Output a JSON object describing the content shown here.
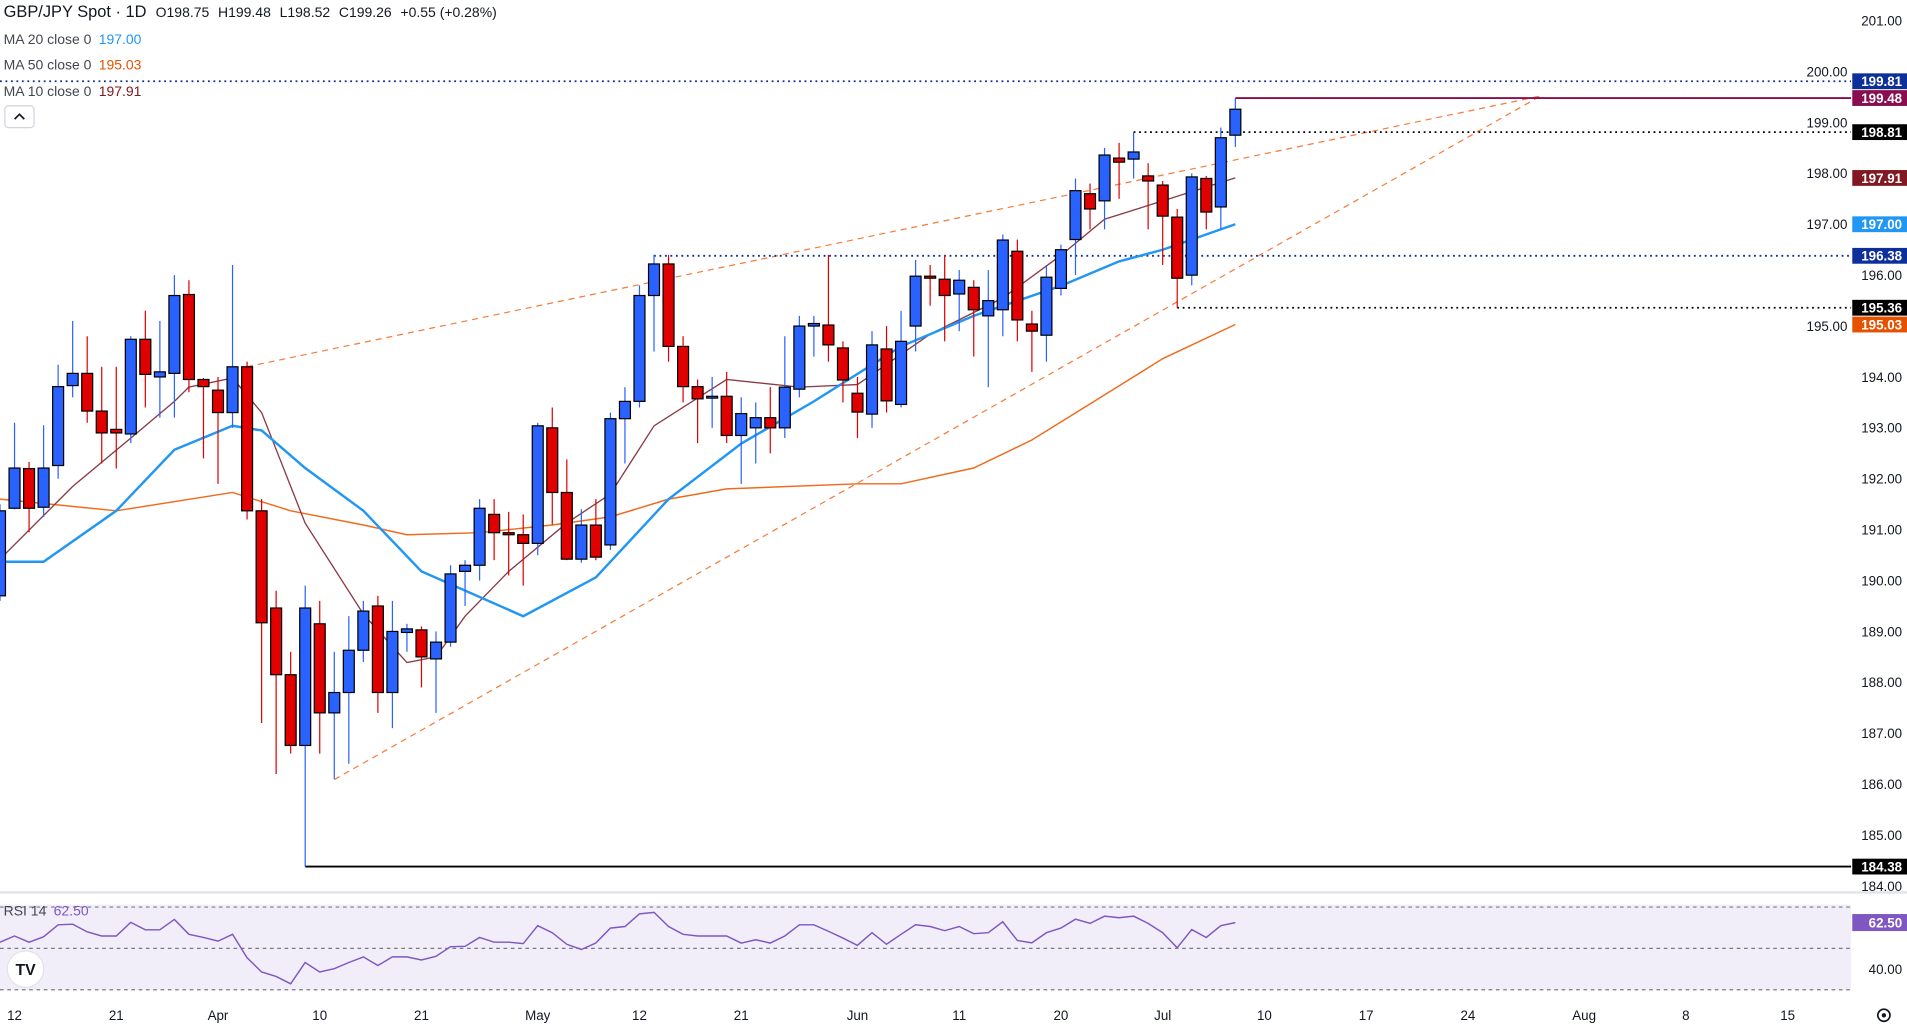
{
  "header": {
    "symbol": "GBP/JPY Spot · 1D",
    "open": "O198.75",
    "high": "H199.48",
    "low": "L198.52",
    "close": "C199.26",
    "change": "+0.55 (+0.28%)"
  },
  "legend": [
    {
      "label": "MA 20 close 0",
      "value": "197.00",
      "color": "#2196f3"
    },
    {
      "label": "MA 50 close 0",
      "value": "195.03",
      "color": "#e65100"
    },
    {
      "label": "MA 10 close 0",
      "value": "197.91",
      "color": "#801922"
    }
  ],
  "collapse_icon": "chevron-up-icon",
  "rsi": {
    "label": "RSI 14",
    "value": "62.50",
    "color": "#7e57c2",
    "axis_label": "40.00"
  },
  "colors": {
    "up": "#2962ff",
    "down": "#e00000",
    "ma20": "#2196f3",
    "ma50": "#f06a1d",
    "ma10": "#8a3a45",
    "trend": "#f57c3a"
  },
  "price_badges": [
    {
      "value": "199.81",
      "color": "#0d2f99"
    },
    {
      "value": "199.48",
      "color": "#880e4f"
    },
    {
      "value": "198.81",
      "color": "#000000"
    },
    {
      "value": "197.91",
      "color": "#801922"
    },
    {
      "value": "197.00",
      "color": "#2196f3"
    },
    {
      "value": "196.38",
      "color": "#0d2f99"
    },
    {
      "value": "195.36",
      "color": "#000000"
    },
    {
      "value": "195.03",
      "color": "#e65100"
    },
    {
      "value": "184.38",
      "color": "#000000"
    }
  ],
  "chart_data": {
    "type": "candlestick",
    "title": "GBP/JPY Spot · 1D",
    "ylim": [
      184,
      201
    ],
    "y_ticks": [
      "201.00",
      "200.00",
      "199.00",
      "198.00",
      "197.00",
      "196.00",
      "195.00",
      "194.00",
      "193.00",
      "192.00",
      "191.00",
      "190.00",
      "189.00",
      "188.00",
      "187.00",
      "186.00",
      "185.00",
      "184.00"
    ],
    "x_labels": [
      {
        "bar": 1,
        "text": "12"
      },
      {
        "bar": 8,
        "text": "21"
      },
      {
        "bar": 15,
        "text": "Apr"
      },
      {
        "bar": 22,
        "text": "10"
      },
      {
        "bar": 29,
        "text": "21"
      },
      {
        "bar": 37,
        "text": "May"
      },
      {
        "bar": 44,
        "text": "12"
      },
      {
        "bar": 51,
        "text": "21"
      },
      {
        "bar": 59,
        "text": "Jun"
      },
      {
        "bar": 66,
        "text": "11"
      },
      {
        "bar": 73,
        "text": "20"
      },
      {
        "bar": 80,
        "text": "Jul"
      },
      {
        "bar": 87,
        "text": "10"
      },
      {
        "bar": 94,
        "text": "17"
      },
      {
        "bar": 101,
        "text": "24"
      },
      {
        "bar": 109,
        "text": "Aug"
      },
      {
        "bar": 116,
        "text": "8"
      },
      {
        "bar": 123,
        "text": "15"
      }
    ],
    "ohlc": [
      [
        189.7,
        191.5,
        189.6,
        191.37
      ],
      [
        191.42,
        193.1,
        191.4,
        192.21
      ],
      [
        192.2,
        192.33,
        190.95,
        191.42
      ],
      [
        191.44,
        193.05,
        191.25,
        192.21
      ],
      [
        192.26,
        194.24,
        192.0,
        193.81
      ],
      [
        193.83,
        195.1,
        193.6,
        194.07
      ],
      [
        194.07,
        194.8,
        193.1,
        193.33
      ],
      [
        193.33,
        194.2,
        192.3,
        192.9
      ],
      [
        192.97,
        194.2,
        192.2,
        192.9
      ],
      [
        192.88,
        194.8,
        192.7,
        194.74
      ],
      [
        194.74,
        195.3,
        193.4,
        194.05
      ],
      [
        194.0,
        195.1,
        193.2,
        194.1
      ],
      [
        194.07,
        196.0,
        193.2,
        195.6
      ],
      [
        195.62,
        195.9,
        193.7,
        193.95
      ],
      [
        193.95,
        193.98,
        192.4,
        193.81
      ],
      [
        193.74,
        194.0,
        191.9,
        193.3
      ],
      [
        193.3,
        196.2,
        193.0,
        194.2
      ],
      [
        194.2,
        194.3,
        191.2,
        191.37
      ],
      [
        191.37,
        191.6,
        187.2,
        189.17
      ],
      [
        189.46,
        189.8,
        186.2,
        188.15
      ],
      [
        188.15,
        188.6,
        186.6,
        186.76
      ],
      [
        186.76,
        189.9,
        184.38,
        189.46
      ],
      [
        189.15,
        189.6,
        186.6,
        187.4
      ],
      [
        187.4,
        188.6,
        186.1,
        187.8
      ],
      [
        187.8,
        189.3,
        186.4,
        188.63
      ],
      [
        188.63,
        189.6,
        188.4,
        189.4
      ],
      [
        189.5,
        189.7,
        187.4,
        187.8
      ],
      [
        187.8,
        189.6,
        187.1,
        189.0
      ],
      [
        188.98,
        189.15,
        188.6,
        189.05
      ],
      [
        189.03,
        189.1,
        187.9,
        188.5
      ],
      [
        188.46,
        189.0,
        187.4,
        188.79
      ],
      [
        188.79,
        190.3,
        188.7,
        190.13
      ],
      [
        190.18,
        190.4,
        189.5,
        190.3
      ],
      [
        190.3,
        191.6,
        190.0,
        191.42
      ],
      [
        191.3,
        191.6,
        190.4,
        190.94
      ],
      [
        190.94,
        191.35,
        190.1,
        190.9
      ],
      [
        190.9,
        191.3,
        189.9,
        190.73
      ],
      [
        190.73,
        193.1,
        190.5,
        193.04
      ],
      [
        193.0,
        193.4,
        191.1,
        191.73
      ],
      [
        191.73,
        192.38,
        190.4,
        190.42
      ],
      [
        190.42,
        191.4,
        190.35,
        191.09
      ],
      [
        191.09,
        191.6,
        190.4,
        190.46
      ],
      [
        190.7,
        193.3,
        190.6,
        193.18
      ],
      [
        193.18,
        193.8,
        192.3,
        193.52
      ],
      [
        193.52,
        195.8,
        193.4,
        195.6
      ],
      [
        195.6,
        196.4,
        194.5,
        196.22
      ],
      [
        196.22,
        196.4,
        194.3,
        194.6
      ],
      [
        194.6,
        194.8,
        193.5,
        193.81
      ],
      [
        193.81,
        193.95,
        192.7,
        193.57
      ],
      [
        193.6,
        194.0,
        193.0,
        193.62
      ],
      [
        193.62,
        194.1,
        192.7,
        192.85
      ],
      [
        192.85,
        193.6,
        191.9,
        193.28
      ],
      [
        193.0,
        193.5,
        192.3,
        193.2
      ],
      [
        193.2,
        193.8,
        192.5,
        193.0
      ],
      [
        193.0,
        194.8,
        192.8,
        193.8
      ],
      [
        193.76,
        195.2,
        193.6,
        195.0
      ],
      [
        195.0,
        195.2,
        194.4,
        195.05
      ],
      [
        195.02,
        196.4,
        194.3,
        194.63
      ],
      [
        194.57,
        194.7,
        193.5,
        193.94
      ],
      [
        193.68,
        194.0,
        192.8,
        193.31
      ],
      [
        193.27,
        194.9,
        193.0,
        194.63
      ],
      [
        194.55,
        195.0,
        193.3,
        193.53
      ],
      [
        193.46,
        195.3,
        193.4,
        194.7
      ],
      [
        195.0,
        196.3,
        194.5,
        195.98
      ],
      [
        195.98,
        196.2,
        195.4,
        195.94
      ],
      [
        195.92,
        196.4,
        194.7,
        195.6
      ],
      [
        195.63,
        196.1,
        194.9,
        195.9
      ],
      [
        195.76,
        195.9,
        194.4,
        195.32
      ],
      [
        195.2,
        196.1,
        193.8,
        195.5
      ],
      [
        195.32,
        196.8,
        194.8,
        196.69
      ],
      [
        196.47,
        196.7,
        194.7,
        195.12
      ],
      [
        195.04,
        195.3,
        194.1,
        194.9
      ],
      [
        194.82,
        196.2,
        194.3,
        195.96
      ],
      [
        195.74,
        196.6,
        195.6,
        196.5
      ],
      [
        196.7,
        197.9,
        196.0,
        197.66
      ],
      [
        197.6,
        197.8,
        196.9,
        197.3
      ],
      [
        197.46,
        198.5,
        196.9,
        198.36
      ],
      [
        198.3,
        198.6,
        197.5,
        198.22
      ],
      [
        198.28,
        198.81,
        197.9,
        198.42
      ],
      [
        197.95,
        198.2,
        196.9,
        197.85
      ],
      [
        197.77,
        197.85,
        196.2,
        197.16
      ],
      [
        197.14,
        197.3,
        195.36,
        195.94
      ],
      [
        196.0,
        198.0,
        195.8,
        197.93
      ],
      [
        197.9,
        197.95,
        196.9,
        197.24
      ],
      [
        197.34,
        198.9,
        196.9,
        198.7
      ],
      [
        198.75,
        199.48,
        198.52,
        199.26
      ]
    ],
    "ma20": [
      [
        0,
        190.37
      ],
      [
        3,
        190.37
      ],
      [
        8,
        191.37
      ],
      [
        12,
        192.57
      ],
      [
        16,
        193.04
      ],
      [
        18,
        192.95
      ],
      [
        21,
        192.21
      ],
      [
        25,
        191.37
      ],
      [
        29,
        190.18
      ],
      [
        36,
        189.3
      ],
      [
        41,
        190.06
      ],
      [
        46,
        191.6
      ],
      [
        51,
        192.69
      ],
      [
        56,
        193.52
      ],
      [
        62,
        194.6
      ],
      [
        67,
        195.2
      ],
      [
        73,
        195.79
      ],
      [
        77,
        196.27
      ],
      [
        80,
        196.5
      ],
      [
        85,
        197.0
      ]
    ],
    "ma50": [
      [
        0,
        191.6
      ],
      [
        8,
        191.37
      ],
      [
        16,
        191.73
      ],
      [
        20,
        191.37
      ],
      [
        25,
        191.09
      ],
      [
        28,
        190.9
      ],
      [
        33,
        190.94
      ],
      [
        38,
        191.09
      ],
      [
        42,
        191.25
      ],
      [
        46,
        191.6
      ],
      [
        50,
        191.8
      ],
      [
        59,
        191.9
      ],
      [
        62,
        191.9
      ],
      [
        67,
        192.21
      ],
      [
        71,
        192.76
      ],
      [
        75,
        193.47
      ],
      [
        80,
        194.36
      ],
      [
        85,
        195.03
      ]
    ],
    "ma10": [
      [
        0,
        190.42
      ],
      [
        5,
        191.85
      ],
      [
        9,
        192.8
      ],
      [
        12,
        193.52
      ],
      [
        13,
        193.8
      ],
      [
        16,
        193.98
      ],
      [
        18,
        193.3
      ],
      [
        21,
        191.13
      ],
      [
        25,
        189.34
      ],
      [
        28,
        188.39
      ],
      [
        30,
        188.5
      ],
      [
        32,
        189.3
      ],
      [
        35,
        190.18
      ],
      [
        39,
        191.13
      ],
      [
        42,
        191.7
      ],
      [
        45,
        193.04
      ],
      [
        50,
        193.95
      ],
      [
        55,
        193.8
      ],
      [
        59,
        193.85
      ],
      [
        64,
        194.84
      ],
      [
        69,
        195.55
      ],
      [
        73,
        196.39
      ],
      [
        76,
        197.1
      ],
      [
        80,
        197.46
      ],
      [
        85,
        197.91
      ]
    ],
    "rsi": [
      53,
      56,
      53,
      55.6,
      61.4,
      61.7,
      58,
      56,
      56,
      62.6,
      59,
      59,
      64,
      56.8,
      55.3,
      53.5,
      56.8,
      45.5,
      38.6,
      36.4,
      32.9,
      43.2,
      38.6,
      40.2,
      43.2,
      45.9,
      41.7,
      45.9,
      45.9,
      44.4,
      46.2,
      50.8,
      51,
      55.3,
      53,
      53,
      52.3,
      61,
      57.6,
      52,
      49.5,
      52.6,
      59.8,
      60.6,
      66.7,
      67.4,
      60.6,
      56.8,
      56,
      56,
      56,
      52.6,
      54.2,
      52.6,
      56,
      61.4,
      61.4,
      58.3,
      55,
      51.5,
      57.6,
      52,
      56.8,
      61.4,
      60.6,
      58.6,
      60.6,
      57.1,
      57.6,
      62.9,
      53.8,
      52.7,
      57.6,
      59.8,
      64.1,
      62.1,
      65.6,
      64.8,
      65.6,
      62.1,
      57.6,
      50.3,
      59.1,
      55.3,
      61,
      62.5
    ],
    "rsi_levels": [
      70,
      50,
      30
    ],
    "trendlines": [
      {
        "name": "upper-wedge",
        "from": [
          17,
          194.2
        ],
        "to": [
          106,
          199.52
        ]
      },
      {
        "name": "lower-wedge",
        "from": [
          23,
          186.09
        ],
        "to": [
          106,
          199.52
        ]
      }
    ],
    "hlines": [
      {
        "price": 199.81,
        "from_bar": 0,
        "style": "dotted",
        "color": "#0d2f99"
      },
      {
        "price": 199.48,
        "from_bar": 85,
        "style": "solid",
        "color": "#880e4f"
      },
      {
        "price": 198.81,
        "from_bar": 78,
        "style": "dotted",
        "color": "#000000"
      },
      {
        "price": 196.38,
        "from_bar": 45,
        "style": "dotted",
        "color": "#0d2f99"
      },
      {
        "price": 195.36,
        "from_bar": 81,
        "style": "dotted",
        "color": "#000000"
      },
      {
        "price": 184.38,
        "from_bar": 21,
        "style": "solid",
        "color": "#000000"
      }
    ]
  }
}
